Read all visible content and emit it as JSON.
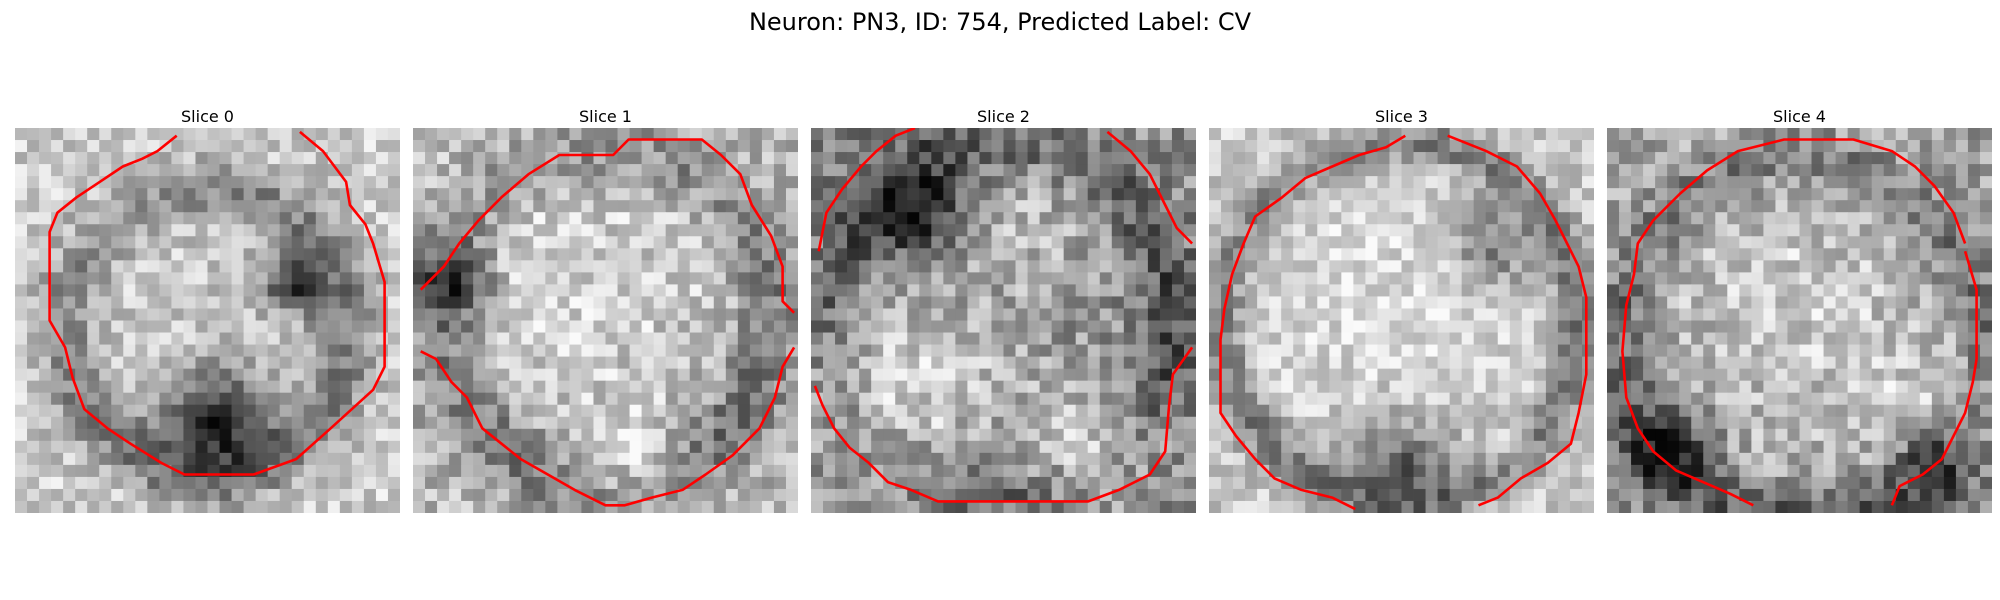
{
  "figure": {
    "suptitle": "Neuron: PN3, ID: 754, Predicted Label: CV",
    "contour_color": "#ff0000",
    "panels": [
      {
        "title": "Slice 0"
      },
      {
        "title": "Slice 1"
      },
      {
        "title": "Slice 2"
      },
      {
        "title": "Slice 3"
      },
      {
        "title": "Slice 4"
      }
    ]
  }
}
